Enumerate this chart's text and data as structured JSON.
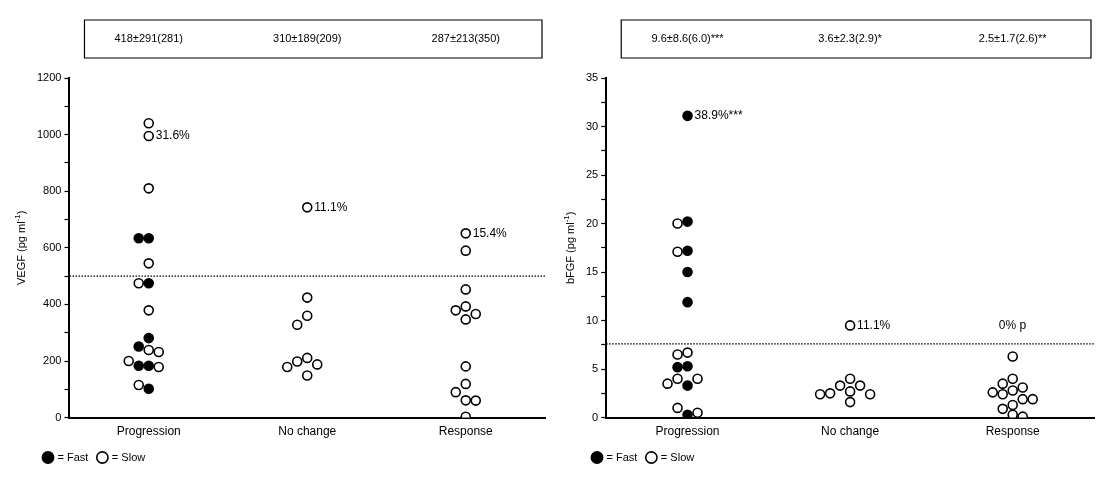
{
  "chart_data": [
    {
      "type": "scatter",
      "ylabel": "VEGF (pg ml$^{-1}$)",
      "categories": [
        "Progression",
        "No change",
        "Response"
      ],
      "ylim": [
        0,
        1200
      ],
      "yticks": [
        0,
        {
          "value": 100,
          "label": null
        },
        200,
        {
          "value": 300,
          "label": null
        },
        400,
        {
          "value": 500,
          "label": null
        },
        600,
        {
          "value": 700,
          "label": null
        },
        800,
        {
          "value": 900,
          "label": null
        },
        1000,
        {
          "value": 1100,
          "label": null
        },
        1200
      ],
      "grid": false,
      "legend": "bottom left",
      "marker": "circle",
      "series": [
        {
          "name": "= Fast",
          "color": "#000000",
          "x": [
            "Progression",
            "Progression",
            "Progression",
            "Progression",
            "Progression",
            "Progression",
            "Progression",
            "Progression"
          ],
          "values": [
            634,
            634,
            475,
            281,
            251,
            183,
            183,
            102
          ]
        },
        {
          "name": "= Slow",
          "color": "#ffffff",
          "x": [
            "Progression",
            "Progression",
            "Progression",
            "Progression",
            "Progression",
            "Progression",
            "Progression",
            "Progression",
            "Progression",
            "Progression",
            "Progression",
            "No change",
            "No change",
            "No change",
            "No change",
            "No change",
            "No change",
            "No change",
            "No change",
            "No change",
            "Response",
            "Response",
            "Response",
            "Response",
            "Response",
            "Response",
            "Response",
            "Response",
            "Response",
            "Response",
            "Response",
            "Response",
            "Response"
          ],
          "values": [
            1040,
            995,
            810,
            545,
            475,
            379,
            239,
            232,
            200,
            179,
            115,
            743,
            424,
            360,
            328,
            211,
            198,
            188,
            179,
            149,
            651,
            590,
            453,
            393,
            379,
            366,
            347,
            181,
            119,
            90,
            61,
            60,
            3
          ]
        }
      ],
      "ref_lines": [
        {
          "axis": "y",
          "value": 500,
          "color": "#000000",
          "line_style": "dotted"
        }
      ],
      "annotations": [
        "418±291(281)",
        "310±189(209)",
        "287±213(350)",
        {
          "text": "31.6%",
          "x": "Progression",
          "y": 995
        },
        {
          "text": "11.1%",
          "x": "No change",
          "y": 743
        },
        {
          "text": "15.4%",
          "x": "Response",
          "y": 651
        }
      ]
    },
    {
      "type": "scatter",
      "ylabel": "bFGF (pg ml$^{-1}$)",
      "categories": [
        "Progression",
        "No change",
        "Response"
      ],
      "ylim": [
        0,
        35
      ],
      "yticks": [
        0,
        {
          "value": 2.5,
          "label": null
        },
        5,
        {
          "value": 7.5,
          "label": null
        },
        10,
        {
          "value": 12.5,
          "label": null
        },
        15,
        {
          "value": 17.5,
          "label": null
        },
        20,
        {
          "value": 22.5,
          "label": null
        },
        25,
        {
          "value": 27.5,
          "label": null
        },
        30,
        {
          "value": 32.5,
          "label": null
        },
        35
      ],
      "grid": false,
      "legend": "bottom left",
      "marker": "circle",
      "series": [
        {
          "name": "= Fast",
          "color": "#000000",
          "x": [
            "Progression",
            "Progression",
            "Progression",
            "Progression",
            "Progression",
            "Progression",
            "Progression",
            "Progression",
            "Progression"
          ],
          "values": [
            31.1,
            20.2,
            17.2,
            15.0,
            11.9,
            5.3,
            5.2,
            3.3,
            0.3
          ]
        },
        {
          "name": "= Slow",
          "color": "#ffffff",
          "x": [
            "Progression",
            "Progression",
            "Progression",
            "Progression",
            "Progression",
            "Progression",
            "Progression",
            "Progression",
            "Progression",
            "No change",
            "No change",
            "No change",
            "No change",
            "No change",
            "No change",
            "No change",
            "No change",
            "No change",
            "Response",
            "Response",
            "Response",
            "Response",
            "Response",
            "Response",
            "Response",
            "Response",
            "Response",
            "Response",
            "Response",
            "Response",
            "Response"
          ],
          "values": [
            20.0,
            17.1,
            6.7,
            6.5,
            4.0,
            4.0,
            3.5,
            1.0,
            0.5,
            9.5,
            4.0,
            3.3,
            3.3,
            2.7,
            2.5,
            2.4,
            2.4,
            1.6,
            6.3,
            4.0,
            3.5,
            3.1,
            2.8,
            2.6,
            2.4,
            1.9,
            1.9,
            1.3,
            0.9,
            0.3,
            0.1
          ]
        }
      ],
      "ref_lines": [
        {
          "axis": "y",
          "value": 7.6,
          "color": "#000000",
          "line_style": "dotted"
        }
      ],
      "annotations": [
        "9.6±8.6(6.0)***",
        "3.6±2.3(2.9)*",
        "2.5±1.7(2.6)**",
        {
          "text": "38.9%***",
          "x": "Progression",
          "y": 31.1
        },
        {
          "text": "11.1%",
          "x": "No change",
          "y": 9.5
        },
        "0% p"
      ]
    }
  ]
}
